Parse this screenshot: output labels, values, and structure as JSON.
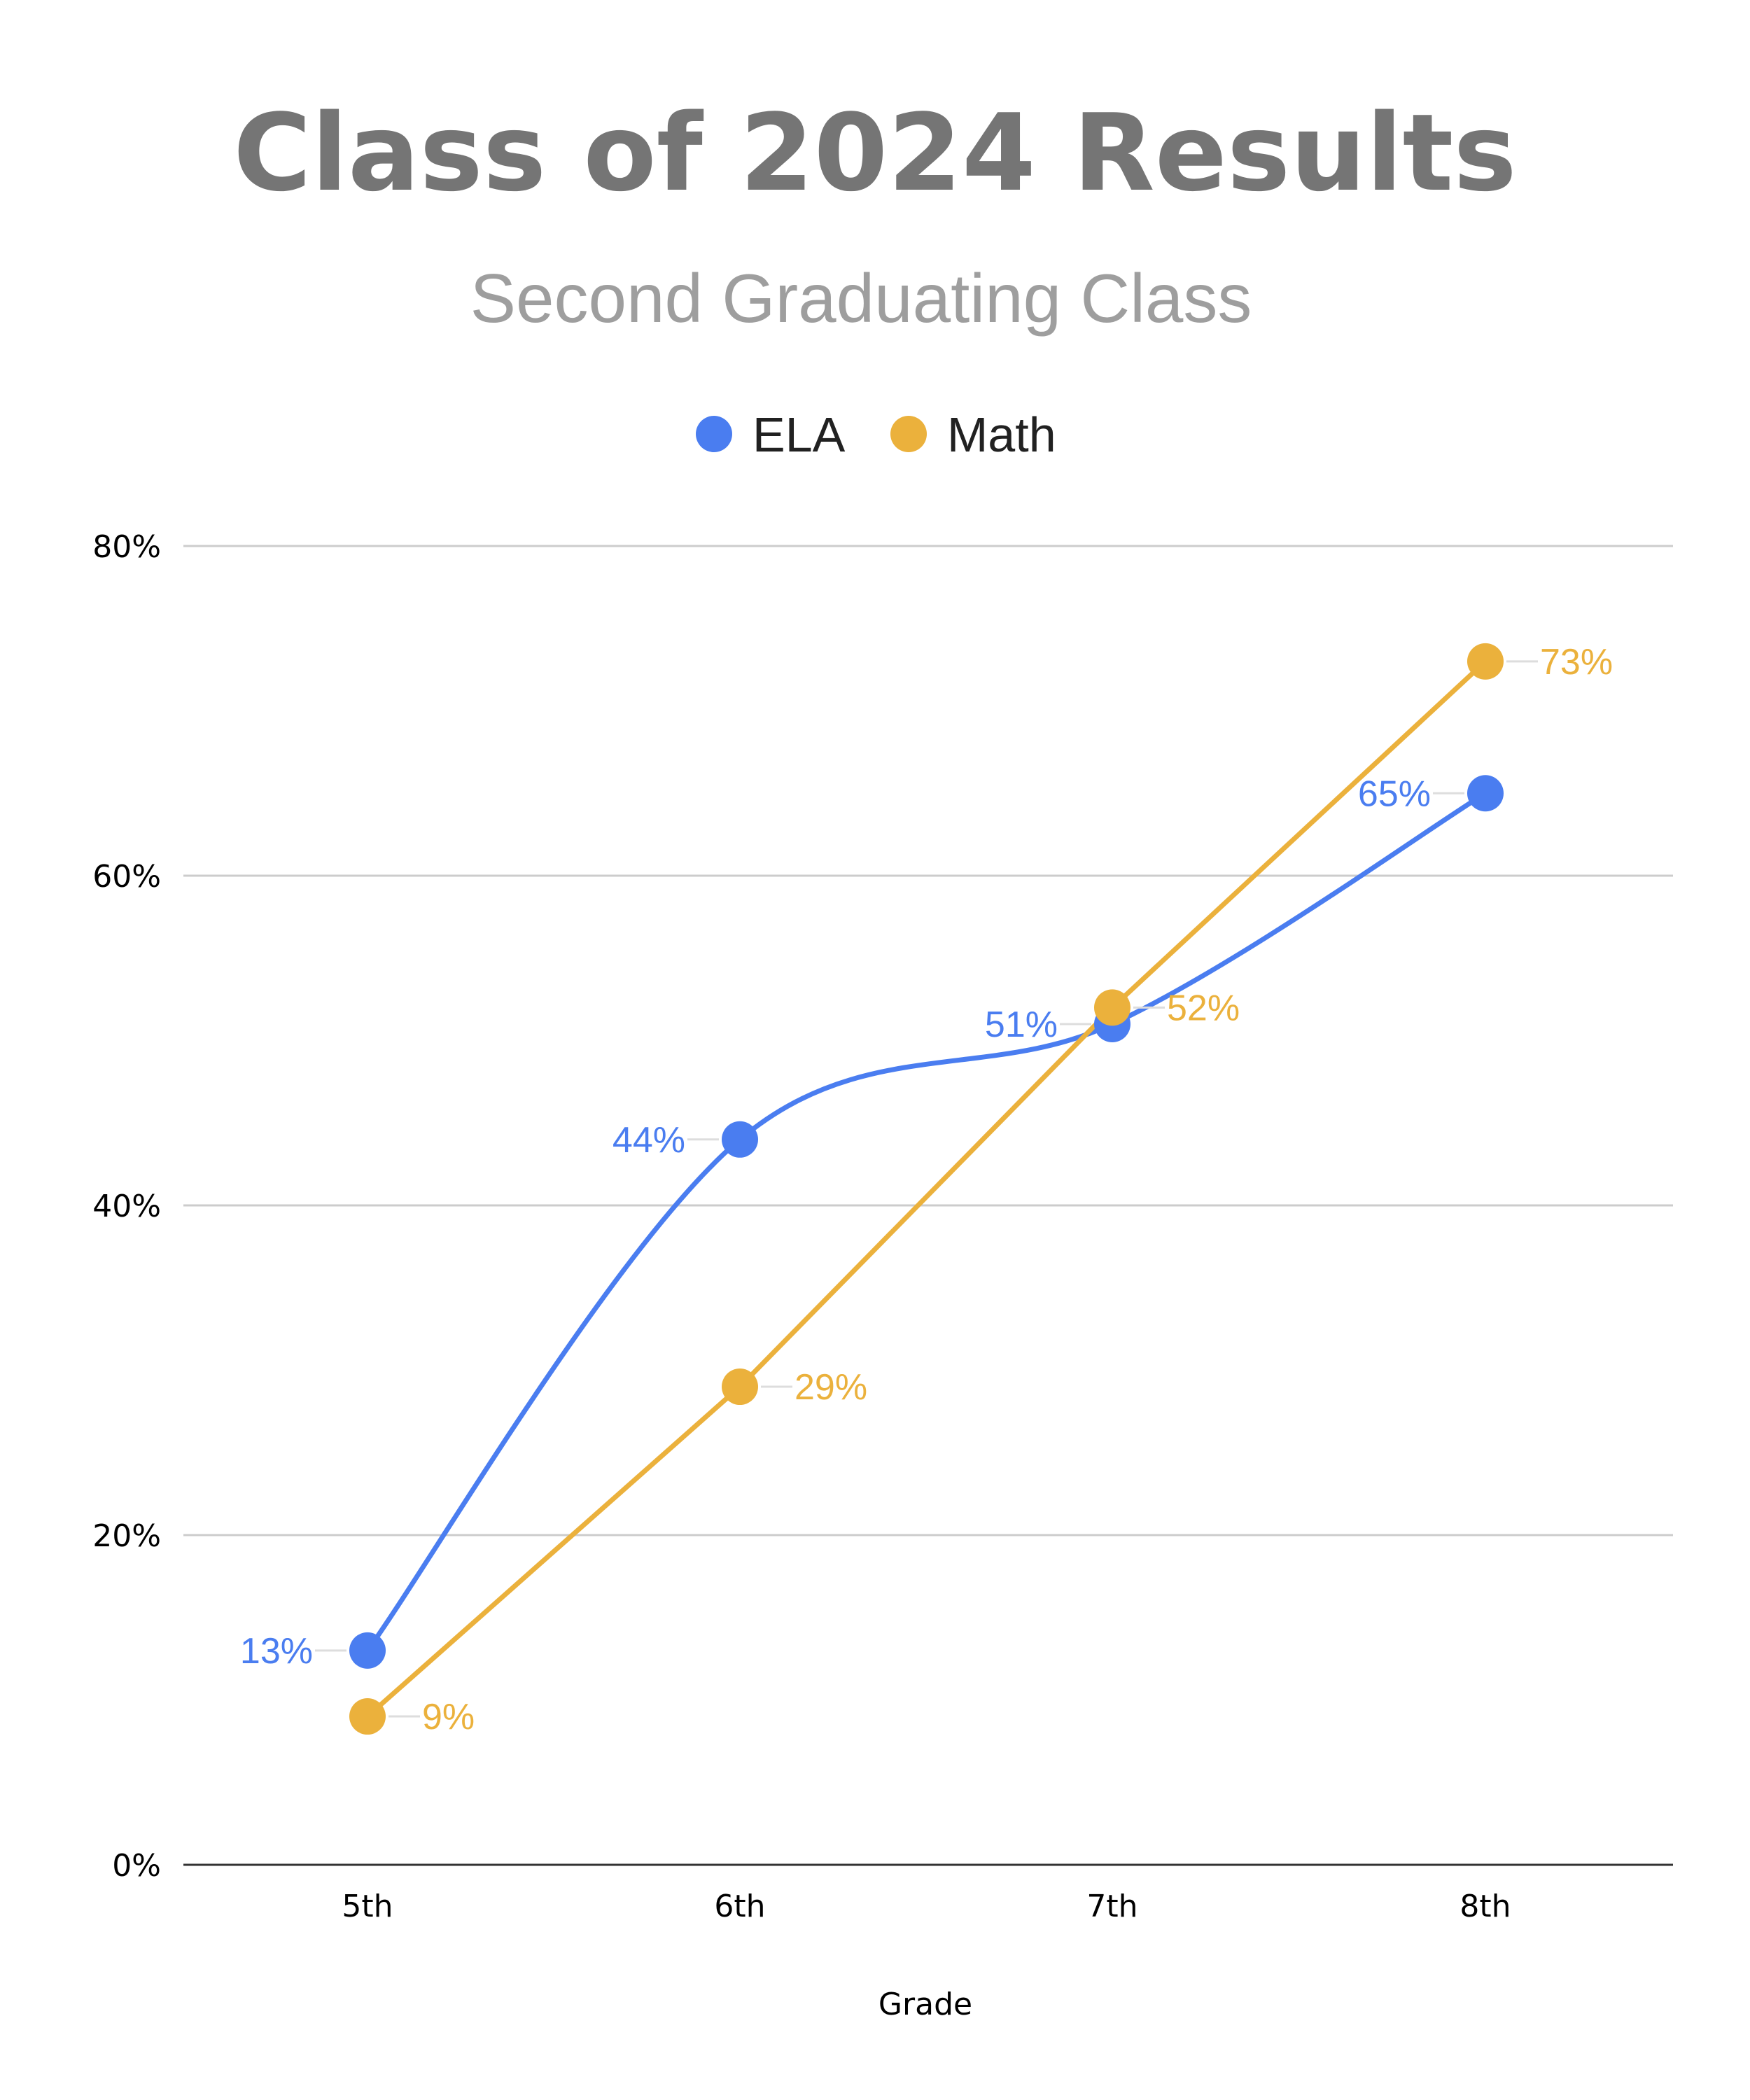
{
  "chart_data": {
    "type": "line",
    "title": "Class of 2024 Results",
    "subtitle": "Second Graduating Class",
    "xlabel": "Grade",
    "ylabel": "",
    "categories": [
      "5th",
      "6th",
      "7th",
      "8th"
    ],
    "y_ticks": [
      "0%",
      "20%",
      "40%",
      "60%",
      "80%"
    ],
    "ylim": [
      0,
      80
    ],
    "grid": true,
    "legend": "top-center",
    "series": [
      {
        "name": "ELA",
        "color": "#4a7df0",
        "smooth": true,
        "values": [
          13,
          44,
          51,
          65
        ],
        "labels": [
          "13%",
          "44%",
          "51%",
          "65%"
        ],
        "label_side": "left"
      },
      {
        "name": "Math",
        "color": "#ebb13c",
        "smooth": false,
        "values": [
          9,
          29,
          52,
          73
        ],
        "labels": [
          "9%",
          "29%",
          "52%",
          "73%"
        ],
        "label_side": "right"
      }
    ]
  }
}
